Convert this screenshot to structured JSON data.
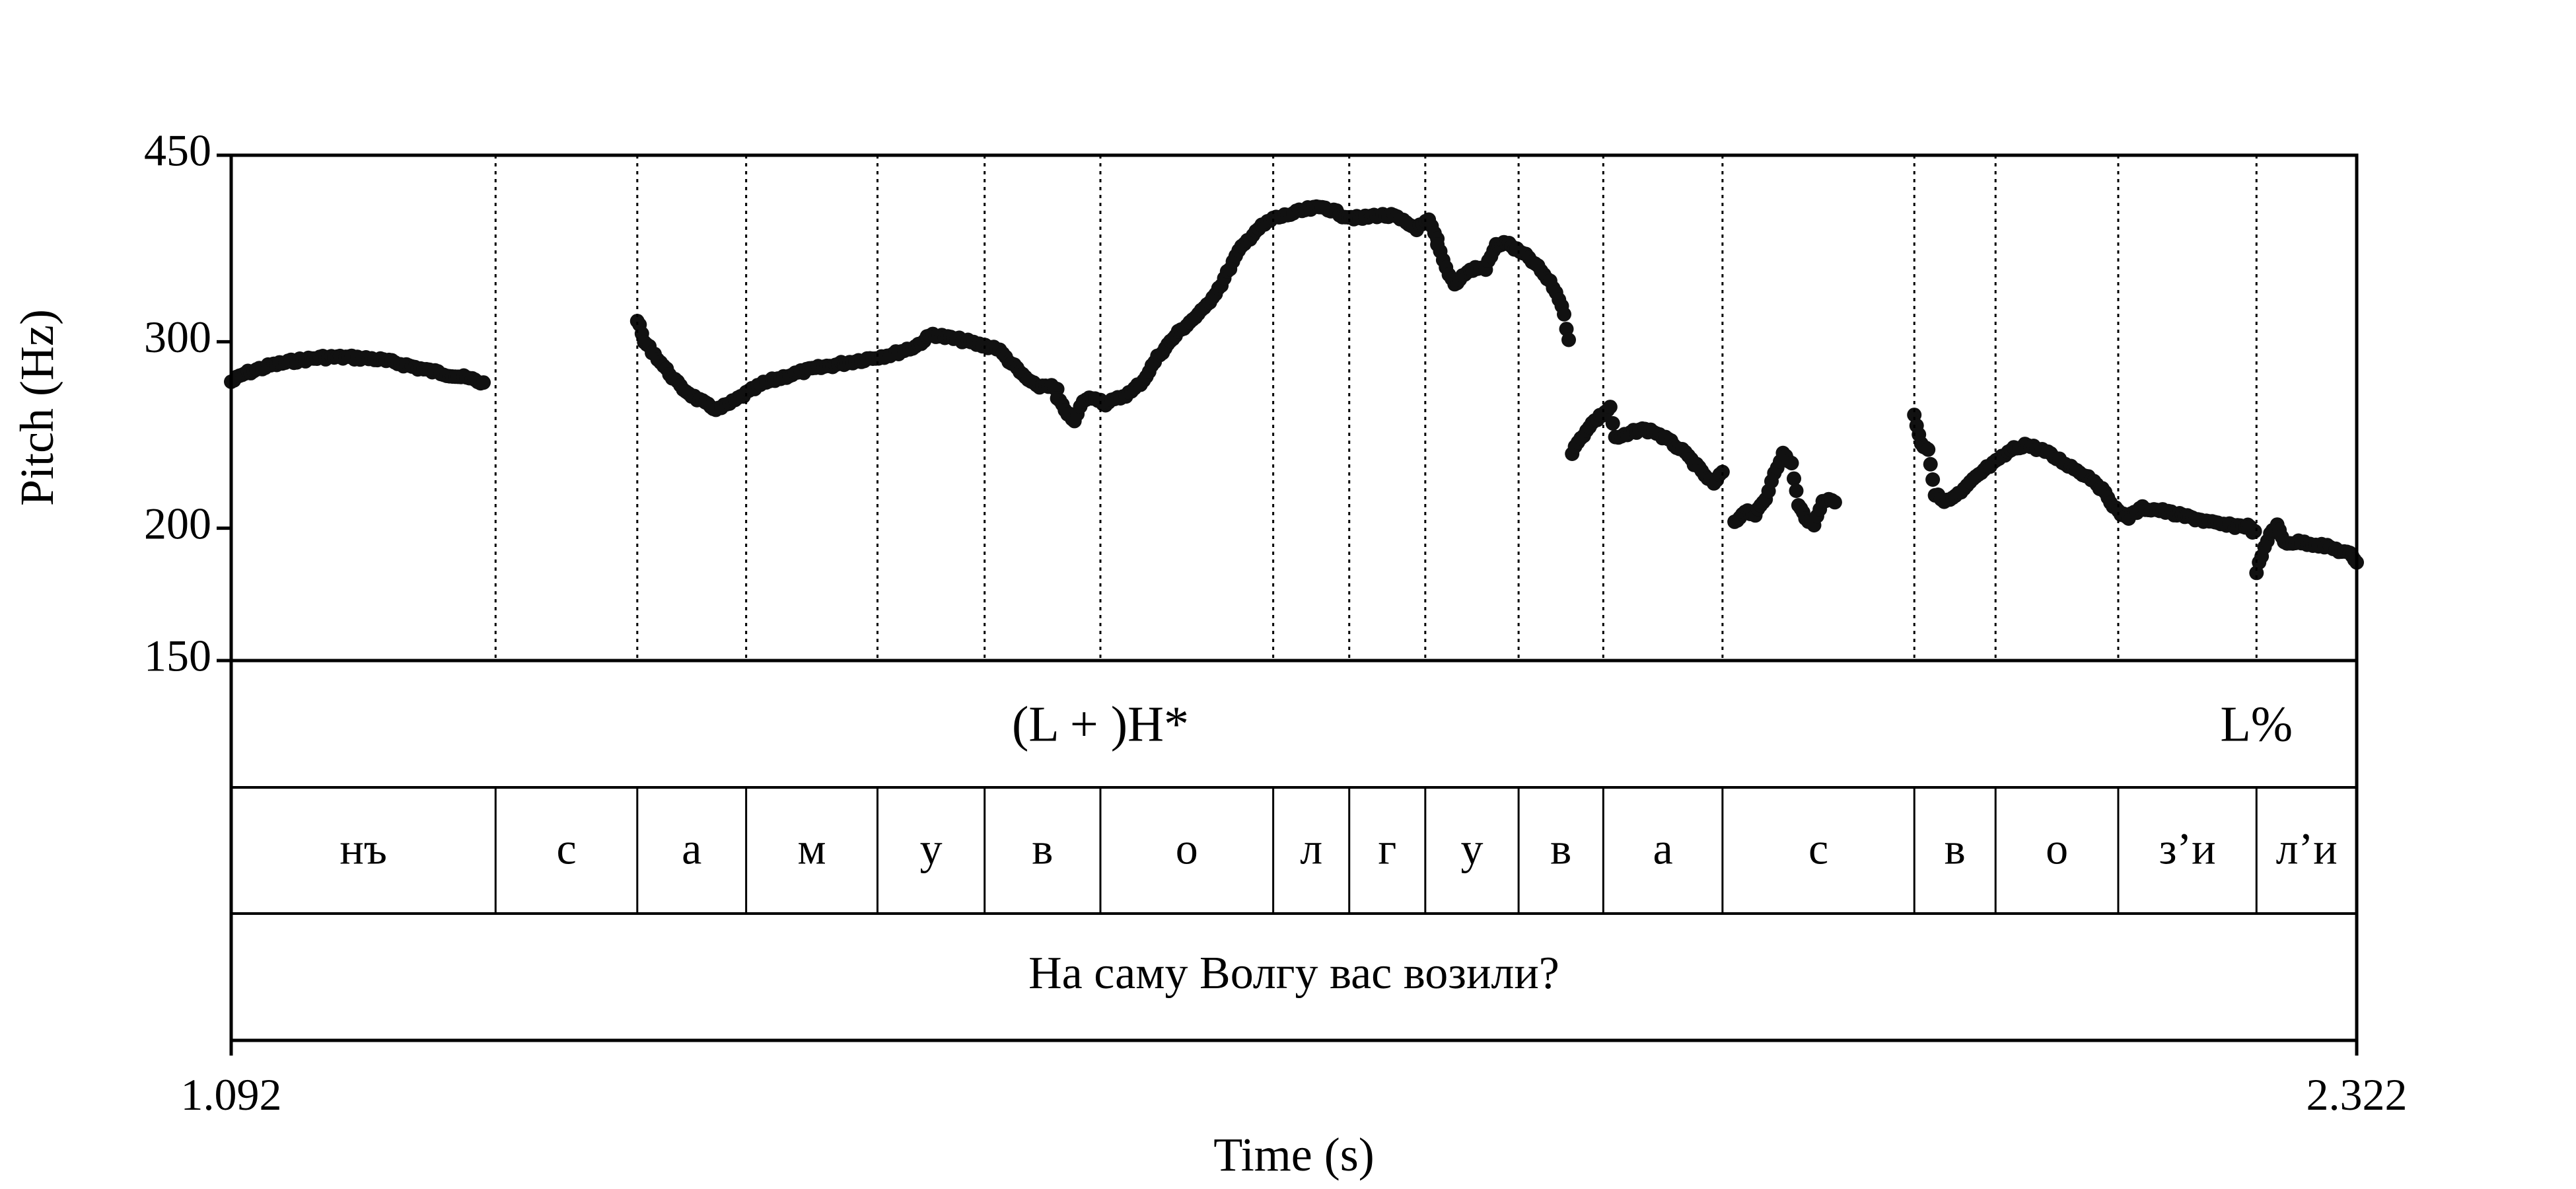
{
  "chart_data": {
    "type": "scatter",
    "title": "",
    "xlabel": "Time (s)",
    "ylabel": "Pitch (Hz)",
    "xlim": [
      1.092,
      2.322
    ],
    "x_tick_labels": [
      "1.092",
      "2.322"
    ],
    "ylim": [
      150,
      450
    ],
    "y_scale": "log",
    "y_ticks": [
      150,
      200,
      300,
      450
    ],
    "y_tick_labels": [
      "150",
      "200",
      "300",
      "450"
    ],
    "grid": false,
    "boundaries": [
      1.245,
      1.327,
      1.39,
      1.466,
      1.528,
      1.595,
      1.695,
      1.739,
      1.783,
      1.837,
      1.886,
      1.955,
      2.066,
      2.113,
      2.184,
      2.264
    ],
    "tones": [
      {
        "label": "(L + )H*",
        "t": 1.595
      },
      {
        "label": "L%",
        "t": 2.264
      }
    ],
    "segments": [
      {
        "label": "нъ",
        "start": 1.092,
        "end": 1.245
      },
      {
        "label": "с",
        "start": 1.245,
        "end": 1.327
      },
      {
        "label": "а",
        "start": 1.327,
        "end": 1.39
      },
      {
        "label": "м",
        "start": 1.39,
        "end": 1.466
      },
      {
        "label": "у",
        "start": 1.466,
        "end": 1.528
      },
      {
        "label": "в",
        "start": 1.528,
        "end": 1.595
      },
      {
        "label": "о",
        "start": 1.595,
        "end": 1.695
      },
      {
        "label": "л",
        "start": 1.695,
        "end": 1.739
      },
      {
        "label": "г",
        "start": 1.739,
        "end": 1.783
      },
      {
        "label": "у",
        "start": 1.783,
        "end": 1.837
      },
      {
        "label": "в",
        "start": 1.837,
        "end": 1.886
      },
      {
        "label": "а",
        "start": 1.886,
        "end": 1.955
      },
      {
        "label": "с",
        "start": 1.955,
        "end": 2.066
      },
      {
        "label": "в",
        "start": 2.066,
        "end": 2.113
      },
      {
        "label": "о",
        "start": 2.113,
        "end": 2.184
      },
      {
        "label": "з’и",
        "start": 2.184,
        "end": 2.264
      },
      {
        "label": "л’и",
        "start": 2.264,
        "end": 2.322
      }
    ],
    "sentence": "На саму Волгу вас возили?",
    "pitch_contours": [
      [
        [
          1.092,
          275
        ],
        [
          1.1,
          280
        ],
        [
          1.115,
          285
        ],
        [
          1.13,
          288
        ],
        [
          1.145,
          290
        ],
        [
          1.16,
          290
        ],
        [
          1.175,
          289
        ],
        [
          1.19,
          286
        ],
        [
          1.205,
          282
        ],
        [
          1.215,
          280
        ],
        [
          1.225,
          278
        ],
        [
          1.233,
          276
        ],
        [
          1.238,
          274
        ]
      ],
      [
        [
          1.327,
          315
        ],
        [
          1.331,
          300
        ],
        [
          1.337,
          292
        ],
        [
          1.344,
          282
        ],
        [
          1.352,
          272
        ],
        [
          1.36,
          266
        ],
        [
          1.368,
          261
        ],
        [
          1.374,
          259
        ],
        [
          1.382,
          263
        ],
        [
          1.39,
          268
        ],
        [
          1.4,
          274
        ],
        [
          1.415,
          279
        ],
        [
          1.43,
          283
        ],
        [
          1.445,
          286
        ],
        [
          1.46,
          289
        ],
        [
          1.475,
          292
        ],
        [
          1.488,
          297
        ],
        [
          1.498,
          305
        ],
        [
          1.505,
          303
        ],
        [
          1.515,
          301
        ],
        [
          1.525,
          298
        ],
        [
          1.535,
          296
        ],
        [
          1.542,
          288
        ],
        [
          1.55,
          279
        ],
        [
          1.558,
          272
        ],
        [
          1.565,
          273
        ],
        [
          1.57,
          270
        ]
      ],
      [
        [
          1.57,
          265
        ],
        [
          1.576,
          257
        ],
        [
          1.58,
          252
        ],
        [
          1.585,
          264
        ],
        [
          1.592,
          266
        ],
        [
          1.598,
          262
        ],
        [
          1.605,
          265
        ],
        [
          1.613,
          269
        ],
        [
          1.62,
          276
        ],
        [
          1.628,
          290
        ],
        [
          1.64,
          306
        ],
        [
          1.655,
          322
        ],
        [
          1.665,
          340
        ],
        [
          1.675,
          365
        ],
        [
          1.685,
          382
        ],
        [
          1.695,
          392
        ],
        [
          1.705,
          396
        ],
        [
          1.715,
          400
        ],
        [
          1.725,
          402
        ],
        [
          1.735,
          395
        ],
        [
          1.745,
          392
        ],
        [
          1.755,
          395
        ],
        [
          1.765,
          394
        ],
        [
          1.772,
          388
        ],
        [
          1.778,
          384
        ],
        [
          1.785,
          390
        ],
        [
          1.79,
          374
        ]
      ],
      [
        [
          1.79,
          370
        ],
        [
          1.795,
          352
        ],
        [
          1.8,
          340
        ],
        [
          1.806,
          348
        ],
        [
          1.812,
          352
        ],
        [
          1.818,
          352
        ],
        [
          1.824,
          370
        ],
        [
          1.83,
          372
        ],
        [
          1.836,
          366
        ],
        [
          1.843,
          360
        ],
        [
          1.85,
          350
        ],
        [
          1.857,
          338
        ],
        [
          1.862,
          325
        ],
        [
          1.866,
          302
        ]
      ],
      [
        [
          1.868,
          236
        ],
        [
          1.873,
          243
        ],
        [
          1.878,
          250
        ],
        [
          1.884,
          255
        ],
        [
          1.89,
          260
        ],
        [
          1.893,
          243
        ],
        [
          1.9,
          245
        ],
        [
          1.907,
          248
        ],
        [
          1.915,
          247
        ],
        [
          1.922,
          243
        ],
        [
          1.93,
          238
        ],
        [
          1.937,
          232
        ],
        [
          1.943,
          226
        ],
        [
          1.95,
          220
        ],
        [
          1.955,
          226
        ]
      ],
      [
        [
          1.962,
          202
        ],
        [
          1.968,
          208
        ],
        [
          1.974,
          206
        ],
        [
          1.98,
          213
        ],
        [
          1.985,
          226
        ],
        [
          1.99,
          235
        ],
        [
          1.995,
          230
        ],
        [
          1.999,
          210
        ],
        [
          2.003,
          205
        ],
        [
          2.008,
          201
        ],
        [
          2.013,
          213
        ],
        [
          2.02,
          212
        ]
      ],
      [
        [
          2.066,
          256
        ],
        [
          2.07,
          240
        ],
        [
          2.074,
          238
        ],
        [
          2.078,
          215
        ],
        [
          2.085,
          212
        ],
        [
          2.093,
          216
        ],
        [
          2.1,
          222
        ],
        [
          2.108,
          228
        ],
        [
          2.115,
          232
        ],
        [
          2.122,
          237
        ],
        [
          2.13,
          240
        ],
        [
          2.14,
          237
        ],
        [
          2.15,
          232
        ],
        [
          2.16,
          227
        ],
        [
          2.17,
          222
        ],
        [
          2.178,
          214
        ],
        [
          2.184,
          207
        ],
        [
          2.19,
          205
        ],
        [
          2.198,
          209
        ],
        [
          2.208,
          208
        ],
        [
          2.218,
          206
        ],
        [
          2.23,
          204
        ],
        [
          2.24,
          202
        ],
        [
          2.25,
          201
        ],
        [
          2.259,
          201
        ],
        [
          2.263,
          198
        ]
      ],
      [
        [
          2.264,
          182
        ],
        [
          2.267,
          188
        ],
        [
          2.272,
          198
        ],
        [
          2.276,
          201
        ],
        [
          2.28,
          194
        ],
        [
          2.29,
          194
        ],
        [
          2.3,
          193
        ],
        [
          2.31,
          191
        ],
        [
          2.318,
          189
        ],
        [
          2.322,
          186
        ]
      ]
    ]
  }
}
